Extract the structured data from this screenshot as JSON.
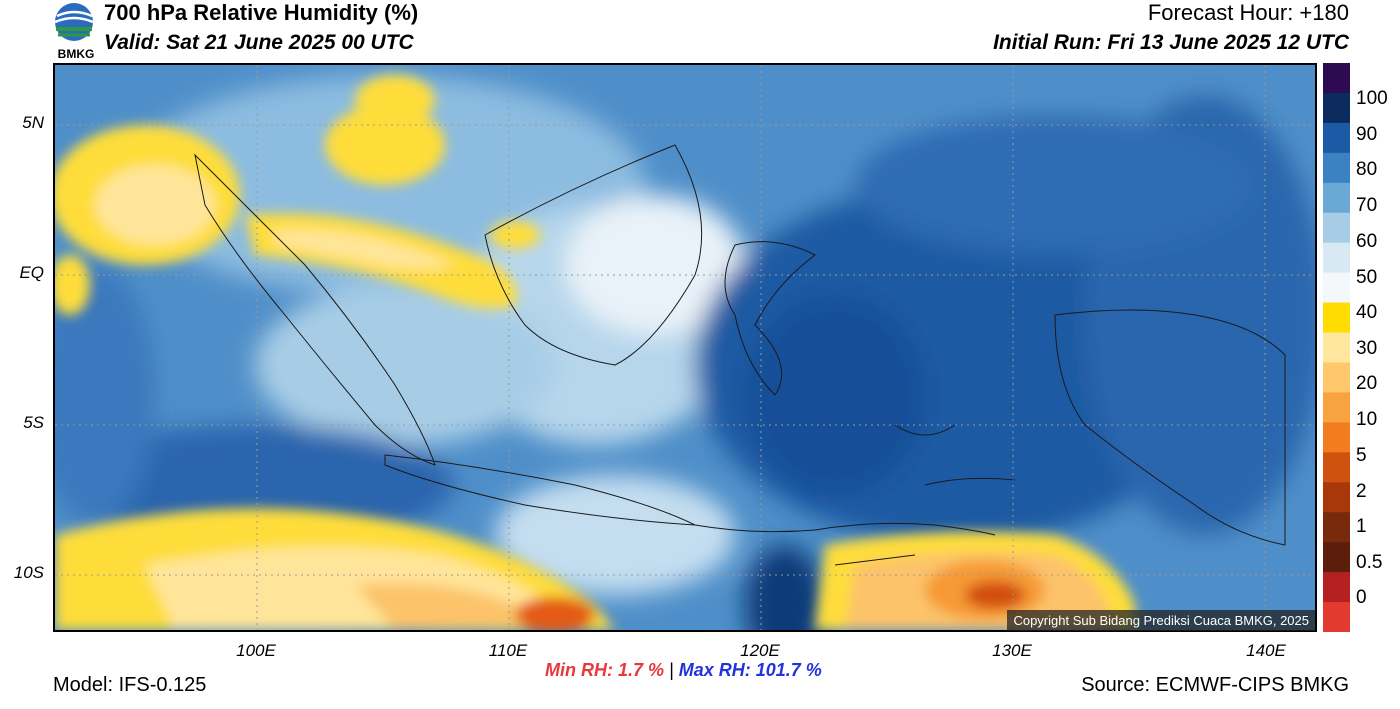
{
  "header": {
    "logo_text": "BMKG",
    "title": "700 hPa Relative Humidity (%)",
    "valid": "Valid: Sat 21 June 2025 00 UTC",
    "forecast_hour": "Forecast Hour: +180",
    "initial_run": "Initial Run: Fri 13 June 2025 12 UTC"
  },
  "map": {
    "lat_labels": [
      "5N",
      "EQ",
      "5S",
      "10S"
    ],
    "lon_labels": [
      "100E",
      "110E",
      "120E",
      "130E",
      "140E"
    ],
    "copyright": "Copyright Sub Bidang Prediksi Cuaca BMKG, 2025"
  },
  "colorbar": {
    "labels": [
      "100",
      "90",
      "80",
      "70",
      "60",
      "50",
      "40",
      "30",
      "20",
      "10",
      "5",
      "2",
      "1",
      "0.5",
      "0"
    ],
    "colors": [
      "#2d0a52",
      "#0b2a5e",
      "#1d5aa6",
      "#3a82c2",
      "#6aa8d6",
      "#a7cde6",
      "#d9e9f3",
      "#f5f8fb",
      "#ffdd00",
      "#ffe7a0",
      "#ffc86a",
      "#f9a340",
      "#f27d1e",
      "#d0520f",
      "#a8380a",
      "#7a2a0c",
      "#5c1e0a",
      "#b52020",
      "#e23a2e"
    ]
  },
  "stats": {
    "min_label": "Min RH:",
    "min_value": "1.7 %",
    "separator": "|",
    "max_label": "Max RH: 101.7 %"
  },
  "footer": {
    "model": "Model: IFS-0.125",
    "source": "Source: ECMWF-CIPS BMKG"
  }
}
